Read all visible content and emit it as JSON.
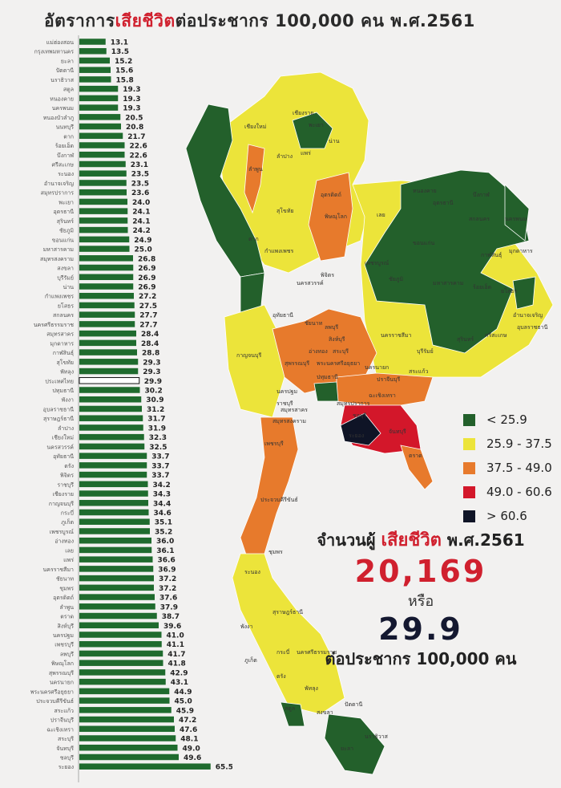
{
  "title": {
    "prefix": "อัตราการ",
    "highlight": "เสียชีวิต",
    "suffix": "ต่อประชากร 100,000 คน พ.ศ.2561"
  },
  "colors": {
    "bar": "#1f6b2e",
    "national_bar": "#ffffff",
    "green": "#23602b",
    "yellow": "#ece43a",
    "orange": "#e77a2c",
    "red": "#d3172a",
    "black": "#0f1426",
    "title_highlight": "#d0202e"
  },
  "chart_data": {
    "type": "bar",
    "orientation": "horizontal",
    "title": "อัตราการเสียชีวิตต่อประชากร 100,000 คน พ.ศ.2561",
    "highlight_category": "ประเทศไทย",
    "categories": [
      "แม่ฮ่องสอน",
      "กรุงเทพมหานคร",
      "ยะลา",
      "ปัตตานี",
      "นราธิวาส",
      "สตูล",
      "หนองคาย",
      "นครพนม",
      "หนองบัวลำภู",
      "นนทบุรี",
      "ตาก",
      "ร้อยเอ็ด",
      "บึงกาฬ",
      "ศรีสะเกษ",
      "ระนอง",
      "อำนาจเจริญ",
      "สมุทรปราการ",
      "พะเยา",
      "อุดรธานี",
      "สุรินทร์",
      "ชัยภูมิ",
      "ขอนแก่น",
      "มหาสารคาม",
      "สมุทรสงคราม",
      "สงขลา",
      "บุรีรัมย์",
      "น่าน",
      "กำแพงเพชร",
      "ยโสธร",
      "สกลนคร",
      "นครศรีธรรมราช",
      "สมุทรสาคร",
      "มุกดาหาร",
      "กาฬสินธุ์",
      "สุโขทัย",
      "พัทลุง",
      "ประเทศไทย",
      "ปทุมธานี",
      "พังงา",
      "อุบลราชธานี",
      "สุราษฎร์ธานี",
      "ลำปาง",
      "เชียงใหม่",
      "นครสวรรค์",
      "อุทัยธานี",
      "ตรัง",
      "พิจิตร",
      "ราชบุรี",
      "เชียงราย",
      "กาญจนบุรี",
      "กระบี่",
      "ภูเก็ต",
      "เพชรบูรณ์",
      "อ่างทอง",
      "เลย",
      "แพร่",
      "นครราชสีมา",
      "ชัยนาท",
      "ชุมพร",
      "อุตรดิตถ์",
      "ลำพูน",
      "ตราด",
      "สิงห์บุรี",
      "นครปฐม",
      "เพชรบุรี",
      "ลพบุรี",
      "พิษณุโลก",
      "สุพรรณบุรี",
      "นครนายก",
      "พระนครศรีอยุธยา",
      "ประจวบคีรีขันธ์",
      "สระแก้ว",
      "ปราจีนบุรี",
      "ฉะเชิงเทรา",
      "สระบุรี",
      "จันทบุรี",
      "ชลบุรี",
      "ระยอง"
    ],
    "values": [
      13.1,
      13.5,
      15.2,
      15.6,
      15.8,
      19.3,
      19.3,
      19.3,
      20.5,
      20.8,
      21.7,
      22.6,
      22.6,
      23.1,
      23.5,
      23.5,
      23.6,
      24.0,
      24.1,
      24.1,
      24.2,
      24.9,
      25.0,
      26.8,
      26.9,
      26.9,
      26.9,
      27.2,
      27.5,
      27.7,
      27.7,
      28.4,
      28.4,
      28.8,
      29.3,
      29.3,
      29.9,
      30.2,
      30.9,
      31.2,
      31.7,
      31.9,
      32.3,
      32.5,
      33.7,
      33.7,
      33.7,
      34.2,
      34.3,
      34.4,
      34.6,
      35.1,
      35.2,
      36.0,
      36.1,
      36.6,
      36.9,
      37.2,
      37.2,
      37.6,
      37.9,
      38.7,
      39.6,
      41.0,
      41.1,
      41.7,
      41.8,
      42.9,
      43.1,
      44.9,
      45.0,
      45.9,
      47.2,
      47.6,
      48.1,
      49.0,
      49.6,
      65.5
    ],
    "xlim": [
      0,
      70
    ],
    "grid": false
  },
  "legend": [
    {
      "label": "< 25.9",
      "color": "#23602b"
    },
    {
      "label": "25.9 - 37.5",
      "color": "#ece43a"
    },
    {
      "label": "37.5 - 49.0",
      "color": "#e77a2c"
    },
    {
      "label": "49.0 - 60.6",
      "color": "#d3172a"
    },
    {
      "label": "> 60.6",
      "color": "#0f1426"
    }
  ],
  "summary": {
    "line1_prefix": "จำนวนผู้ ",
    "line1_highlight": "เสียชีวิต",
    "line1_suffix": " พ.ศ.2561",
    "deaths": "20,169",
    "or": "หรือ",
    "rate": "29.9",
    "per": "ต่อประชากร 100,000 คน"
  },
  "map": {
    "labels": [
      "เชียงราย",
      "พะเยา",
      "เชียงใหม่",
      "น่าน",
      "ลำปาง",
      "แพร่",
      "ลำพูน",
      "อุตรดิตถ์",
      "สุโขทัย",
      "พิษณุโลก",
      "ตาก",
      "เลย",
      "หนองคาย",
      "อุดรธานี",
      "บึงกาฬ",
      "สกลนคร",
      "นครพนม",
      "กาฬสินธุ์",
      "มุกดาหาร",
      "ขอนแก่น",
      "กำแพงเพชร",
      "พิจิตร",
      "เพชรบูรณ์",
      "ชัยภูมิ",
      "มหาสารคาม",
      "ร้อยเอ็ด",
      "ยโสธร",
      "อำนาจเจริญ",
      "นครสวรรค์",
      "อุทัยธานี",
      "ชัยนาท",
      "ลพบุรี",
      "สิงห์บุรี",
      "อ่างทอง",
      "สระบุรี",
      "นครราชสีมา",
      "บุรีรัมย์",
      "สุรินทร์",
      "ศรีสะเกษ",
      "อุบลราชธานี",
      "กาญจนบุรี",
      "สุพรรณบุรี",
      "พระนครศรีอยุธยา",
      "ปทุมธานี",
      "นครนายก",
      "ปราจีนบุรี",
      "สระแก้ว",
      "นครปฐม",
      "ราชบุรี",
      "สมุทรสาคร",
      "สมุทรสงคราม",
      "สมุทรปราการ",
      "ฉะเชิงเทรา",
      "ชลบุรี",
      "ระยอง",
      "จันทบุรี",
      "ตราด",
      "เพชรบุรี",
      "ประจวบคีรีขันธ์",
      "ชุมพร",
      "ระนอง",
      "สุราษฎร์ธานี",
      "พังงา",
      "ภูเก็ต",
      "กระบี่",
      "นครศรีธรรมราช",
      "ตรัง",
      "พัทลุง",
      "สตูล",
      "สงขลา",
      "ปัตตานี",
      "ยะลา",
      "นราธิวาส"
    ]
  }
}
